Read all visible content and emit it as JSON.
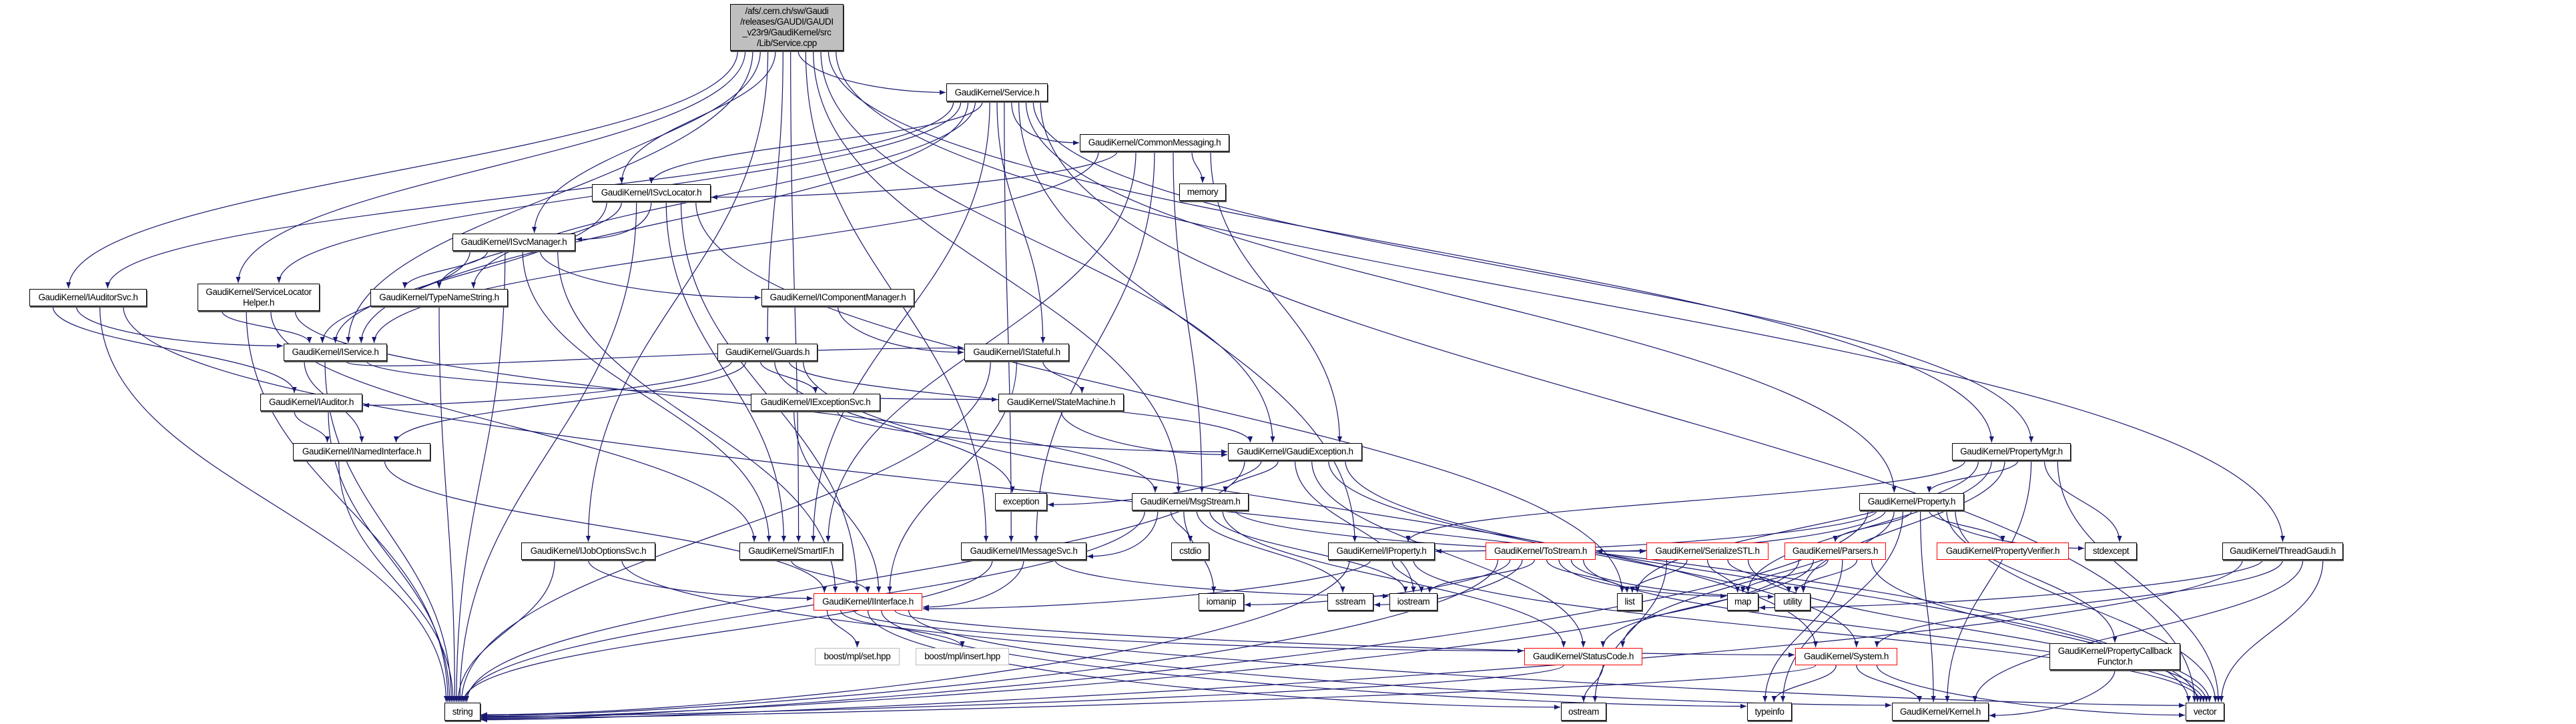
{
  "colors": {
    "edge": "#191970",
    "root_fill": "#bfbfbf",
    "truncated_border": "#ff0000",
    "external_border": "#bfbfbf"
  },
  "nodes": {
    "root": "/afs/.cern.ch/sw/Gaudi\n/releases/GAUDI/GAUDI\n_v23r9/GaudiKernel/src\n/Lib/Service.cpp",
    "service": "GaudiKernel/Service.h",
    "commonmsg": "GaudiKernel/CommonMessaging.h",
    "memory": "memory",
    "isvclocator": "GaudiKernel/ISvcLocator.h",
    "isvcmanager": "GaudiKernel/ISvcManager.h",
    "iauditorsvc": "GaudiKernel/IAuditorSvc.h",
    "servicelocatorhelper": "GaudiKernel/ServiceLocator\nHelper.h",
    "typenamestring": "GaudiKernel/TypeNameString.h",
    "icomponentmanager": "GaudiKernel/IComponentManager.h",
    "iservice": "GaudiKernel/IService.h",
    "guards": "GaudiKernel/Guards.h",
    "istateful": "GaudiKernel/IStateful.h",
    "iauditor": "GaudiKernel/IAuditor.h",
    "iexceptionsvc": "GaudiKernel/IExceptionSvc.h",
    "statemachine": "GaudiKernel/StateMachine.h",
    "inamedinterface": "GaudiKernel/INamedInterface.h",
    "gaudiexception": "GaudiKernel/GaudiException.h",
    "propertymgr": "GaudiKernel/PropertyMgr.h",
    "exception": "exception",
    "msgstream": "GaudiKernel/MsgStream.h",
    "property": "GaudiKernel/Property.h",
    "ijoboptionssvc": "GaudiKernel/IJobOptionsSvc.h",
    "smartif": "GaudiKernel/SmartIF.h",
    "imessagesvc": "GaudiKernel/IMessageSvc.h",
    "cstdio": "cstdio",
    "iproperty": "GaudiKernel/IProperty.h",
    "tostream": "GaudiKernel/ToStream.h",
    "serializestl": "GaudiKernel/SerializeSTL.h",
    "parsers": "GaudiKernel/Parsers.h",
    "propertyverifier": "GaudiKernel/PropertyVerifier.h",
    "stdexcept": "stdexcept",
    "threadgaudi": "GaudiKernel/ThreadGaudi.h",
    "iinterface": "GaudiKernel/IInterface.h",
    "iomanip": "iomanip",
    "sstream": "sstream",
    "iostream": "iostream",
    "list": "list",
    "map": "map",
    "utility": "utility",
    "boostset": "boost/mpl/set.hpp",
    "boostinsert": "boost/mpl/insert.hpp",
    "statuscode": "GaudiKernel/StatusCode.h",
    "system": "GaudiKernel/System.h",
    "pcf": "GaudiKernel/PropertyCallback\nFunctor.h",
    "string": "string",
    "ostream": "ostream",
    "typeinfo": "typeinfo",
    "kernel": "GaudiKernel/Kernel.h",
    "vector": "vector"
  },
  "edges": [
    [
      "root",
      "service"
    ],
    [
      "root",
      "iauditorsvc"
    ],
    [
      "root",
      "servicelocatorhelper"
    ],
    [
      "root",
      "isvclocator"
    ],
    [
      "root",
      "isvcmanager"
    ],
    [
      "root",
      "ijoboptionssvc"
    ],
    [
      "root",
      "guards"
    ],
    [
      "root",
      "gaudiexception"
    ],
    [
      "root",
      "msgstream"
    ],
    [
      "root",
      "imessagesvc"
    ],
    [
      "root",
      "propertymgr"
    ],
    [
      "root",
      "threadgaudi"
    ],
    [
      "root",
      "smartif"
    ],
    [
      "root",
      "iservice"
    ],
    [
      "service",
      "iservice"
    ],
    [
      "service",
      "isvclocator"
    ],
    [
      "service",
      "imessagesvc"
    ],
    [
      "service",
      "iproperty"
    ],
    [
      "service",
      "propertymgr"
    ],
    [
      "service",
      "property"
    ],
    [
      "service",
      "iauditorsvc"
    ],
    [
      "service",
      "commonmsg"
    ],
    [
      "service",
      "istateful"
    ],
    [
      "service",
      "smartif"
    ],
    [
      "service",
      "servicelocatorhelper"
    ],
    [
      "service",
      "typenamestring"
    ],
    [
      "service",
      "vector"
    ],
    [
      "commonmsg",
      "isvclocator"
    ],
    [
      "commonmsg",
      "iservice"
    ],
    [
      "commonmsg",
      "memory"
    ],
    [
      "commonmsg",
      "gaudiexception"
    ],
    [
      "commonmsg",
      "imessagesvc"
    ],
    [
      "commonmsg",
      "msgstream"
    ],
    [
      "commonmsg",
      "smartif"
    ],
    [
      "isvclocator",
      "isvcmanager"
    ],
    [
      "isvclocator",
      "typenamestring"
    ],
    [
      "isvclocator",
      "iinterface"
    ],
    [
      "isvclocator",
      "smartif"
    ],
    [
      "isvclocator",
      "string"
    ],
    [
      "isvclocator",
      "list"
    ],
    [
      "isvclocator",
      "iservice"
    ],
    [
      "isvcmanager",
      "typenamestring"
    ],
    [
      "isvcmanager",
      "icomponentmanager"
    ],
    [
      "isvcmanager",
      "iservice"
    ],
    [
      "isvcmanager",
      "smartif"
    ],
    [
      "isvcmanager",
      "string"
    ],
    [
      "isvcmanager",
      "iinterface"
    ],
    [
      "iauditorsvc",
      "iservice"
    ],
    [
      "iauditorsvc",
      "iauditor"
    ],
    [
      "iauditorsvc",
      "string"
    ],
    [
      "iauditorsvc",
      "vector"
    ],
    [
      "servicelocatorhelper",
      "iservice"
    ],
    [
      "servicelocatorhelper",
      "smartif"
    ],
    [
      "servicelocatorhelper",
      "string"
    ],
    [
      "servicelocatorhelper",
      "msgstream"
    ],
    [
      "typenamestring",
      "string"
    ],
    [
      "icomponentmanager",
      "istateful"
    ],
    [
      "iservice",
      "inamedinterface"
    ],
    [
      "iservice",
      "istateful"
    ],
    [
      "iservice",
      "statemachine"
    ],
    [
      "iservice",
      "string"
    ],
    [
      "guards",
      "iauditor"
    ],
    [
      "guards",
      "inamedinterface"
    ],
    [
      "guards",
      "iexceptionsvc"
    ],
    [
      "guards",
      "exception"
    ],
    [
      "guards",
      "system"
    ],
    [
      "guards",
      "gaudiexception"
    ],
    [
      "istateful",
      "statemachine"
    ],
    [
      "istateful",
      "iinterface"
    ],
    [
      "istateful",
      "string"
    ],
    [
      "iauditor",
      "inamedinterface"
    ],
    [
      "iauditor",
      "string"
    ],
    [
      "inamedinterface",
      "iinterface"
    ],
    [
      "inamedinterface",
      "string"
    ],
    [
      "iexceptionsvc",
      "iinterface"
    ],
    [
      "iexceptionsvc",
      "gaudiexception"
    ],
    [
      "statemachine",
      "gaudiexception"
    ],
    [
      "gaudiexception",
      "exception"
    ],
    [
      "gaudiexception",
      "msgstream"
    ],
    [
      "gaudiexception",
      "iostream"
    ],
    [
      "gaudiexception",
      "string"
    ],
    [
      "gaudiexception",
      "statuscode"
    ],
    [
      "gaudiexception",
      "system"
    ],
    [
      "gaudiexception",
      "vector"
    ],
    [
      "msgstream",
      "imessagesvc"
    ],
    [
      "msgstream",
      "cstdio"
    ],
    [
      "msgstream",
      "iomanip"
    ],
    [
      "msgstream",
      "sstream"
    ],
    [
      "msgstream",
      "iostream"
    ],
    [
      "msgstream",
      "string"
    ],
    [
      "msgstream",
      "serializestl"
    ],
    [
      "msgstream",
      "statuscode"
    ],
    [
      "imessagesvc",
      "iinterface"
    ],
    [
      "imessagesvc",
      "iostream"
    ],
    [
      "imessagesvc",
      "string"
    ],
    [
      "ijoboptionssvc",
      "iinterface"
    ],
    [
      "ijoboptionssvc",
      "string"
    ],
    [
      "ijoboptionssvc",
      "vector"
    ],
    [
      "smartif",
      "iinterface"
    ],
    [
      "iproperty",
      "iinterface"
    ],
    [
      "iproperty",
      "iostream"
    ],
    [
      "iproperty",
      "string"
    ],
    [
      "iproperty",
      "vector"
    ],
    [
      "tostream",
      "iomanip"
    ],
    [
      "tostream",
      "iostream"
    ],
    [
      "tostream",
      "sstream"
    ],
    [
      "tostream",
      "list"
    ],
    [
      "tostream",
      "map"
    ],
    [
      "tostream",
      "vector"
    ],
    [
      "tostream",
      "string"
    ],
    [
      "tostream",
      "utility"
    ],
    [
      "serializestl",
      "list"
    ],
    [
      "serializestl",
      "map"
    ],
    [
      "serializestl",
      "utility"
    ],
    [
      "serializestl",
      "ostream"
    ],
    [
      "serializestl",
      "vector"
    ],
    [
      "parsers",
      "map"
    ],
    [
      "parsers",
      "utility"
    ],
    [
      "parsers",
      "string"
    ],
    [
      "parsers",
      "typeinfo"
    ],
    [
      "parsers",
      "vector"
    ],
    [
      "parsers",
      "statuscode"
    ],
    [
      "property",
      "parsers"
    ],
    [
      "property",
      "propertyverifier"
    ],
    [
      "property",
      "stdexcept"
    ],
    [
      "property",
      "tostream"
    ],
    [
      "property",
      "iproperty"
    ],
    [
      "property",
      "string"
    ],
    [
      "property",
      "vector"
    ],
    [
      "property",
      "typeinfo"
    ],
    [
      "property",
      "pcf"
    ],
    [
      "property",
      "kernel"
    ],
    [
      "property",
      "statuscode"
    ],
    [
      "propertymgr",
      "property"
    ],
    [
      "propertymgr",
      "stdexcept"
    ],
    [
      "propertymgr",
      "map"
    ],
    [
      "propertymgr",
      "iproperty"
    ],
    [
      "propertymgr",
      "vector"
    ],
    [
      "propertymgr",
      "kernel"
    ],
    [
      "propertymgr",
      "list"
    ],
    [
      "propertymgr",
      "utility"
    ],
    [
      "threadgaudi",
      "system"
    ],
    [
      "threadgaudi",
      "kernel"
    ],
    [
      "threadgaudi",
      "map"
    ],
    [
      "threadgaudi",
      "string"
    ],
    [
      "threadgaudi",
      "vector"
    ],
    [
      "iinterface",
      "boostset"
    ],
    [
      "iinterface",
      "boostinsert"
    ],
    [
      "iinterface",
      "statuscode"
    ],
    [
      "iinterface",
      "system"
    ],
    [
      "iinterface",
      "kernel"
    ],
    [
      "iinterface",
      "ostream"
    ],
    [
      "iinterface",
      "typeinfo"
    ],
    [
      "statuscode",
      "ostream"
    ],
    [
      "statuscode",
      "string"
    ],
    [
      "system",
      "typeinfo"
    ],
    [
      "system",
      "kernel"
    ],
    [
      "system",
      "vector"
    ],
    [
      "system",
      "string"
    ],
    [
      "pcf",
      "kernel"
    ]
  ]
}
